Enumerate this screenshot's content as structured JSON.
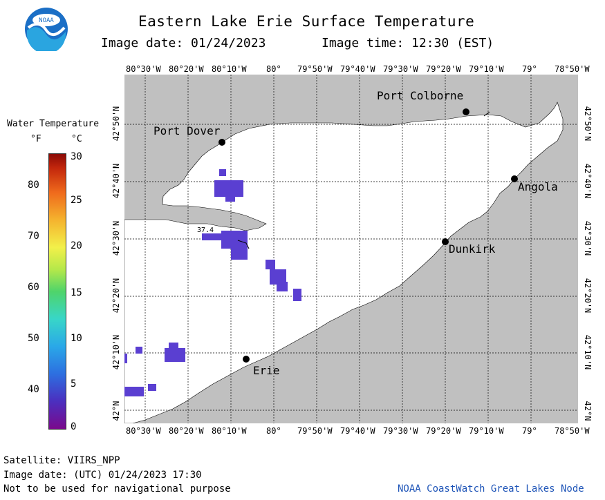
{
  "title": "Eastern Lake Erie Surface Temperature",
  "image_date_label": "Image date: 01/24/2023",
  "image_time_label": "Image time: 12:30 (EST)",
  "logo_text": "NOAA",
  "legend": {
    "title": "Water Temperature",
    "unit_f": "°F",
    "unit_c": "°C",
    "f_ticks": [
      "80",
      "70",
      "60",
      "50",
      "40"
    ],
    "c_ticks": [
      "30",
      "25",
      "20",
      "15",
      "10",
      "5",
      "0"
    ]
  },
  "lon_ticks": [
    "80°30'W",
    "80°20'W",
    "80°10'W",
    "80°",
    "79°50'W",
    "79°40'W",
    "79°30'W",
    "79°20'W",
    "79°10'W",
    "79°",
    "78°50'W"
  ],
  "lat_ticks": [
    "42°50'N",
    "42°40'N",
    "42°30'N",
    "42°20'N",
    "42°10'N",
    "42°N"
  ],
  "cities": {
    "port_colborne": "Port Colborne",
    "port_dover": "Port Dover",
    "angola": "Angola",
    "dunkirk": "Dunkirk",
    "erie": "Erie"
  },
  "probe_label": "37.4",
  "footer": {
    "satellite": "Satellite: VIIRS_NPP",
    "utc_date": "Image date: (UTC) 01/24/2023  17:30",
    "disclaimer": "Not to be used for navigational purpose",
    "credit": "NOAA CoastWatch Great Lakes Node"
  },
  "colors": {
    "land": "#c0c0c0",
    "water_nodata": "#ffffff",
    "cold_pixels": "#5a3fd1",
    "credit": "#1f55b8"
  }
}
